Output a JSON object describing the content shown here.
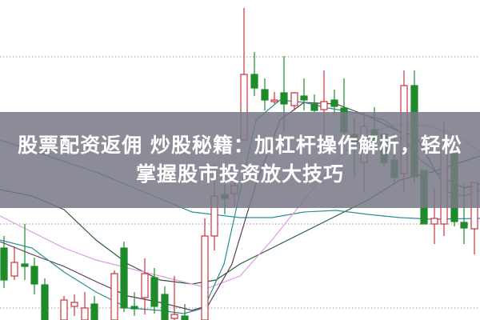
{
  "headline": {
    "line1": "股票配资返佣 炒股秘籍：加杠杆操作解析，轻松",
    "line2": "掌握股市投资放大技巧"
  },
  "colors": {
    "up_candle": "#c8323c",
    "down_candle": "#1f8a2a",
    "ma_teal": "#2a8f96",
    "ma_purple": "#5a3a5e",
    "ma_pink": "#e09ae6",
    "ma_green": "#2f5a36",
    "grid": "#999999",
    "banner": "#787886"
  }
}
